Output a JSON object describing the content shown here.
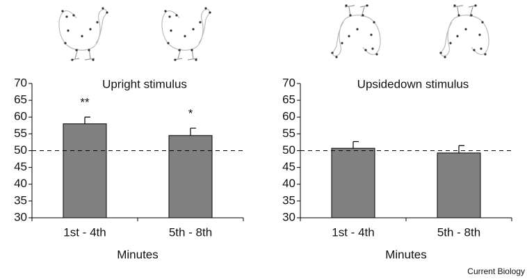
{
  "chart_data": [
    {
      "type": "bar",
      "title": "Upright stimulus",
      "x_label": "Minutes",
      "categories": [
        "1st - 4th",
        "5th - 8th"
      ],
      "values": [
        58,
        54.5
      ],
      "errors": [
        2,
        2.2
      ],
      "annotations": [
        "**",
        "*"
      ],
      "color": "#808080",
      "reference_line": 50,
      "ylim": [
        30,
        70
      ],
      "yticks": [
        30,
        35,
        40,
        45,
        50,
        55,
        60,
        65,
        70
      ]
    },
    {
      "type": "bar",
      "title": "Upsidedown stimulus",
      "x_label": "Minutes",
      "categories": [
        "1st - 4th",
        "5th - 8th"
      ],
      "values": [
        50.7,
        49.3
      ],
      "errors": [
        2,
        2.2
      ],
      "color": "#808080",
      "reference_line": 50,
      "ylim": [
        30,
        70
      ],
      "yticks": [
        30,
        35,
        40,
        45,
        50,
        55,
        60,
        65,
        70
      ]
    }
  ],
  "source": "Current Biology"
}
